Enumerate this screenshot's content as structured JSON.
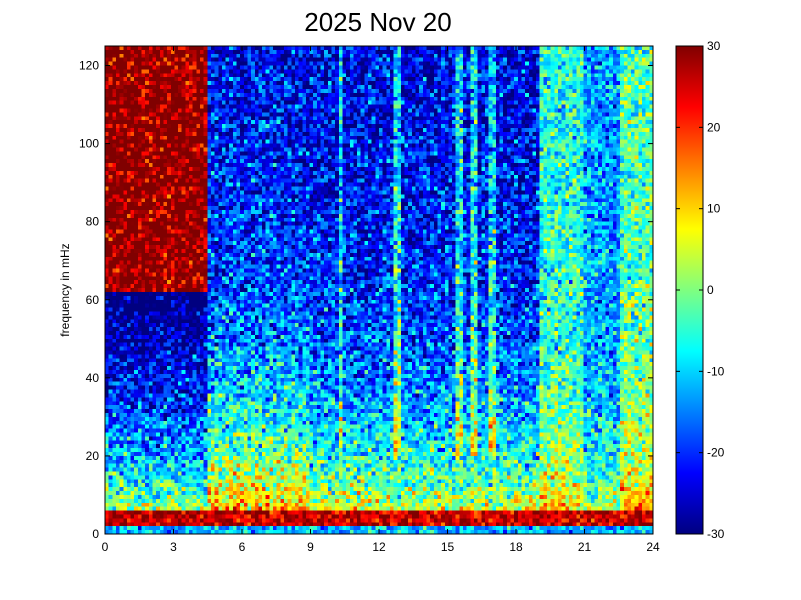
{
  "chart_data": {
    "type": "heatmap",
    "title": "2025 Nov 20",
    "xlabel": "",
    "ylabel": "frequency in mHz",
    "xlim": [
      0,
      24
    ],
    "ylim": [
      0,
      125
    ],
    "x_ticks": [
      "0",
      "3",
      "6",
      "9",
      "12",
      "15",
      "18",
      "21",
      "24"
    ],
    "y_ticks": [
      "0",
      "20",
      "40",
      "60",
      "80",
      "100",
      "120"
    ],
    "colorbar": {
      "colormap": "jet",
      "clim": [
        -30,
        30
      ],
      "ticks": [
        "30",
        "20",
        "10",
        "0",
        "-10",
        "-20",
        "-30"
      ]
    },
    "grid": false,
    "features": {
      "microseism_band_mHz": [
        2,
        6
      ],
      "high_noise_window_hours": [
        0,
        4.5
      ],
      "quiet_window_hours": [
        4.5,
        19
      ],
      "loud_window_hours": [
        19,
        24
      ]
    }
  }
}
